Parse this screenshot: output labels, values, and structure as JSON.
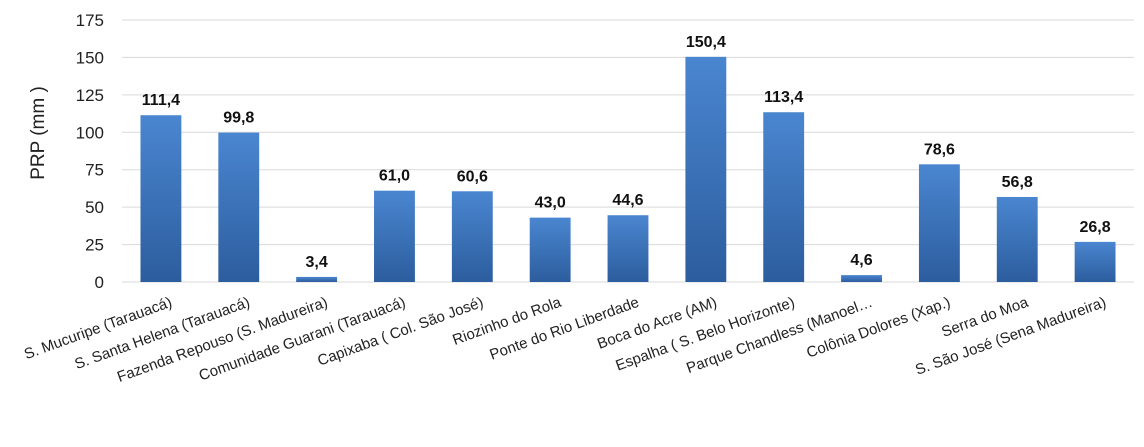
{
  "chart_data": {
    "type": "bar",
    "title": "",
    "xlabel": "",
    "ylabel": "PRP (mm )",
    "ylim": [
      0,
      175
    ],
    "yticks": [
      0,
      25,
      50,
      75,
      100,
      125,
      150,
      175
    ],
    "grid": true,
    "legend": "none",
    "bar_color_top": "#4a86d0",
    "bar_color_bottom": "#2c5d9e",
    "categories": [
      "S. Mucuripe (Tarauacá)",
      "S. Santa Helena (Tarauacá)",
      "Fazenda Repouso (S. Madureira)",
      "Comunidade Guarani (Tarauacá)",
      "Capixaba ( Col. São José)",
      "Riozinho do Rola",
      "Ponte do Rio Liberdade",
      "Boca do Acre (AM)",
      "Espalha ( S. Belo Horizonte)",
      "Parque Chandless (Manoel…",
      "Colônia Dolores (Xap.)",
      "Serra do Moa",
      "S. São José (Sena Madureira)"
    ],
    "values": [
      111.4,
      99.8,
      3.4,
      61.0,
      60.6,
      43.0,
      44.6,
      150.4,
      113.4,
      4.6,
      78.6,
      56.8,
      26.8
    ],
    "value_labels": [
      "111,4",
      "99,8",
      "3,4",
      "61,0",
      "60,6",
      "43,0",
      "44,6",
      "150,4",
      "113,4",
      "4,6",
      "78,6",
      "56,8",
      "26,8"
    ]
  }
}
